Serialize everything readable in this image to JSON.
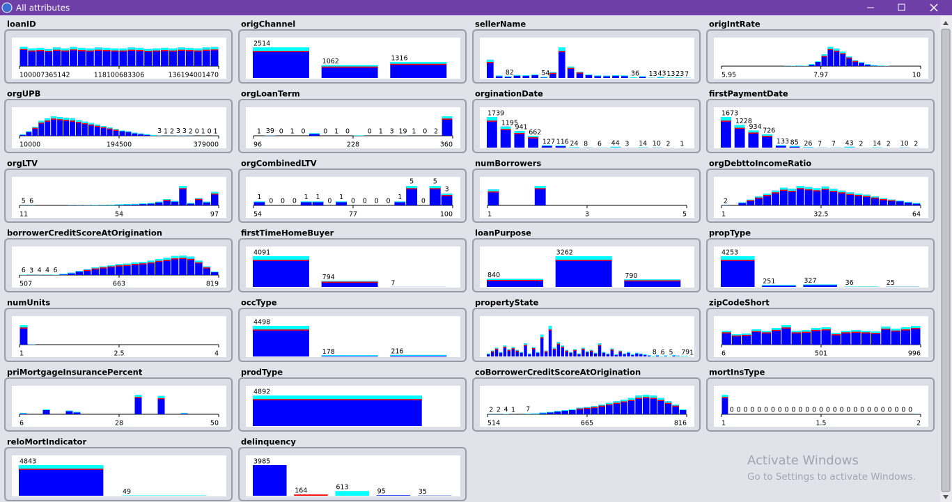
{
  "window": {
    "title": "All attributes"
  },
  "watermark": {
    "line1": "Activate Windows",
    "line2": "Go to Settings to activate Windows."
  },
  "panels": [
    {
      "name": "loanID",
      "kind": "numeric",
      "ticks": [
        100007365142,
        118100683306,
        136194001470
      ],
      "values": [
        220,
        200,
        205,
        195,
        210,
        200,
        215,
        205,
        200,
        210,
        205,
        200,
        200,
        210,
        205,
        195,
        200,
        205,
        200,
        210,
        205,
        200,
        210,
        215
      ]
    },
    {
      "name": "origChannel",
      "kind": "nominal",
      "values": [
        2514,
        1062,
        1316
      ]
    },
    {
      "name": "sellerName",
      "kind": "nominal",
      "values": [
        950,
        120,
        82,
        150,
        140,
        180,
        54,
        300,
        1600,
        600,
        320,
        180,
        130,
        120,
        140,
        130,
        36,
        90,
        13,
        43,
        13,
        23,
        7
      ],
      "value_labels": [
        null,
        null,
        "82",
        null,
        null,
        null,
        "54",
        null,
        null,
        null,
        null,
        null,
        null,
        null,
        null,
        null,
        "36",
        null,
        "13",
        "43",
        "13",
        "23",
        "7"
      ]
    },
    {
      "name": "origIntRate",
      "kind": "numeric",
      "ticks": [
        5.95,
        7.97,
        10
      ],
      "values": [
        0,
        0,
        0,
        0,
        0,
        0,
        0,
        0,
        0,
        0,
        2,
        3,
        5,
        4,
        20,
        50,
        120,
        200,
        180,
        150,
        100,
        60,
        40,
        20,
        10,
        5,
        3,
        0,
        0,
        0,
        0,
        0
      ]
    },
    {
      "name": "orgUPB",
      "kind": "numeric",
      "ticks": [
        10000,
        194500,
        379000
      ],
      "values": [
        20,
        60,
        120,
        200,
        230,
        260,
        250,
        240,
        230,
        210,
        190,
        170,
        150,
        130,
        110,
        90,
        70,
        60,
        40,
        30,
        20,
        10,
        3,
        1,
        2,
        3,
        3,
        2,
        0,
        1,
        0,
        1
      ],
      "value_labels": [
        null,
        null,
        null,
        null,
        null,
        null,
        null,
        null,
        null,
        null,
        null,
        null,
        null,
        null,
        null,
        null,
        null,
        null,
        null,
        null,
        null,
        null,
        "3",
        "1",
        "2",
        "3",
        "3",
        "2",
        "0",
        "1",
        "0",
        "1"
      ]
    },
    {
      "name": "orgLoanTerm",
      "kind": "numeric",
      "ticks": [
        96,
        228,
        360
      ],
      "values": [
        1,
        39,
        0,
        1,
        0,
        500,
        0,
        1,
        0,
        80,
        0,
        1,
        3,
        19,
        1,
        0,
        2,
        3900
      ],
      "value_labels": [
        "1",
        "39",
        "0",
        "1",
        "0",
        null,
        "0",
        "1",
        "0",
        null,
        "0",
        "1",
        "3",
        "19",
        "1",
        "0",
        "2",
        null
      ]
    },
    {
      "name": "orginationDate",
      "kind": "nominal",
      "values": [
        1739,
        1195,
        941,
        662,
        127,
        116,
        24,
        8,
        6,
        44,
        3,
        14,
        10,
        2,
        1
      ]
    },
    {
      "name": "firstPaymentDate",
      "kind": "nominal",
      "values": [
        1673,
        1228,
        934,
        726,
        133,
        85,
        26,
        7,
        7,
        43,
        2,
        14,
        2,
        10,
        2
      ]
    },
    {
      "name": "orgLTV",
      "kind": "numeric",
      "ticks": [
        11,
        54,
        97
      ],
      "values": [
        5,
        6,
        0,
        0,
        0,
        0,
        5,
        8,
        10,
        15,
        20,
        30,
        40,
        50,
        60,
        80,
        100,
        150,
        250,
        180,
        800,
        100,
        300,
        150,
        550
      ],
      "value_labels": [
        "5",
        "6",
        null,
        null,
        null,
        null,
        null,
        null,
        null,
        null,
        null,
        null,
        null,
        null,
        null,
        null,
        null,
        null,
        null,
        null,
        null,
        null,
        null,
        null,
        null
      ]
    },
    {
      "name": "orgCombinedLTV",
      "kind": "numeric",
      "ticks": [
        54,
        77,
        100
      ],
      "values": [
        1,
        0,
        0,
        0,
        1,
        1,
        0,
        1,
        0,
        0,
        0,
        0,
        1,
        5,
        0,
        5,
        3
      ],
      "value_labels": [
        "1",
        "0",
        "0",
        "0",
        "1",
        "1",
        "0",
        "1",
        "0",
        "0",
        "0",
        "0",
        "1",
        "5",
        "0",
        "5",
        "3"
      ]
    },
    {
      "name": "numBorrowers",
      "kind": "numeric",
      "ticks": [
        1,
        3,
        5
      ],
      "values": [
        2200,
        0,
        0,
        0,
        2700,
        0,
        0,
        0,
        0,
        0,
        0,
        0,
        0,
        0,
        0,
        0,
        0
      ]
    },
    {
      "name": "orgDebttoIncomeRatio",
      "kind": "numeric",
      "ticks": [
        1,
        32.5,
        64
      ],
      "values": [
        2,
        0,
        50,
        100,
        150,
        200,
        250,
        300,
        280,
        330,
        310,
        290,
        320,
        280,
        250,
        220,
        200,
        180,
        150,
        120,
        100,
        80,
        60,
        40
      ],
      "value_labels": [
        "2",
        null,
        null,
        null,
        null,
        null,
        null,
        null,
        null,
        null,
        null,
        null,
        null,
        null,
        null,
        null,
        null,
        null,
        null,
        null,
        null,
        null,
        null,
        null
      ]
    },
    {
      "name": "borrowerCreditScoreAtOrigination",
      "kind": "numeric",
      "ticks": [
        507,
        663,
        819
      ],
      "values": [
        6,
        3,
        4,
        4,
        6,
        20,
        40,
        70,
        100,
        130,
        150,
        170,
        190,
        200,
        220,
        230,
        250,
        280,
        300,
        330,
        340,
        320,
        250,
        150,
        60
      ],
      "value_labels": [
        "6",
        "3",
        "4",
        "4",
        "6",
        null,
        null,
        null,
        null,
        null,
        null,
        null,
        null,
        null,
        null,
        null,
        null,
        null,
        null,
        null,
        null,
        null,
        null,
        null,
        null
      ]
    },
    {
      "name": "firstTimeHomeBuyer",
      "kind": "nominal",
      "values": [
        4091,
        794,
        7
      ]
    },
    {
      "name": "loanPurpose",
      "kind": "nominal",
      "values": [
        840,
        3262,
        790
      ]
    },
    {
      "name": "propType",
      "kind": "nominal",
      "values": [
        4253,
        251,
        327,
        36,
        25
      ]
    },
    {
      "name": "numUnits",
      "kind": "numeric",
      "ticks": [
        1,
        2.5,
        4
      ],
      "values": [
        4800,
        60,
        0,
        0,
        0,
        0,
        0,
        0,
        0,
        0,
        0,
        0,
        0,
        0,
        0,
        0,
        0,
        0,
        0,
        0,
        0,
        0,
        0,
        0
      ]
    },
    {
      "name": "occType",
      "kind": "nominal",
      "values": [
        4498,
        178,
        216
      ]
    },
    {
      "name": "propertyState",
      "kind": "nominal",
      "values": [
        40,
        80,
        120,
        60,
        150,
        100,
        130,
        90,
        60,
        180,
        40,
        130,
        60,
        300,
        80,
        420,
        120,
        200,
        150,
        90,
        60,
        100,
        40,
        120,
        70,
        90,
        50,
        180,
        60,
        40,
        110,
        30,
        80,
        40,
        60,
        30,
        50,
        40,
        30,
        20,
        8,
        20,
        6,
        15,
        5,
        20,
        12,
        7,
        9,
        1
      ],
      "value_labels": [
        null,
        null,
        null,
        null,
        null,
        null,
        null,
        null,
        null,
        null,
        null,
        null,
        null,
        null,
        null,
        null,
        null,
        null,
        null,
        null,
        null,
        null,
        null,
        null,
        null,
        null,
        null,
        null,
        null,
        null,
        null,
        null,
        null,
        null,
        null,
        null,
        null,
        null,
        null,
        null,
        "8",
        null,
        "6",
        null,
        "5",
        null,
        null,
        "7",
        "9",
        "1"
      ]
    },
    {
      "name": "zipCodeShort",
      "kind": "numeric",
      "ticks": [
        6,
        501,
        996
      ],
      "values": [
        200,
        150,
        160,
        220,
        200,
        240,
        280,
        200,
        210,
        240,
        250,
        170,
        200,
        210,
        200,
        190,
        260,
        230,
        250,
        270
      ]
    },
    {
      "name": "priMortgageInsurancePercent",
      "kind": "numeric",
      "ticks": [
        6,
        28,
        50
      ],
      "values": [
        10,
        0,
        0,
        40,
        0,
        0,
        30,
        20,
        0,
        0,
        0,
        0,
        0,
        0,
        0,
        160,
        0,
        0,
        150,
        0,
        0,
        10,
        0,
        0,
        0,
        0
      ]
    },
    {
      "name": "prodType",
      "kind": "nominal",
      "values": [
        4892
      ]
    },
    {
      "name": "coBorrowerCreditScoreAtOrigination",
      "kind": "numeric",
      "ticks": [
        514,
        665,
        816
      ],
      "values": [
        2,
        2,
        4,
        1,
        0,
        7,
        10,
        20,
        30,
        40,
        50,
        60,
        80,
        90,
        100,
        120,
        140,
        160,
        180,
        200,
        230,
        240,
        230,
        200,
        160,
        120,
        60
      ],
      "value_labels": [
        "2",
        "2",
        "4",
        "1",
        null,
        "7",
        null,
        null,
        null,
        null,
        null,
        null,
        null,
        null,
        null,
        null,
        null,
        null,
        null,
        null,
        null,
        null,
        null,
        null,
        null,
        null,
        null
      ]
    },
    {
      "name": "mortInsType",
      "kind": "numeric",
      "ticks": [
        1,
        1.5,
        2
      ],
      "values": [
        900,
        0,
        0,
        0,
        0,
        0,
        0,
        0,
        0,
        0,
        0,
        0,
        0,
        0,
        0,
        0,
        0,
        0,
        0,
        0,
        0,
        0,
        0,
        0,
        0,
        0,
        0,
        0,
        5
      ],
      "value_labels": [
        null,
        "0",
        "0",
        "0",
        "0",
        "0",
        "0",
        "0",
        "0",
        "0",
        "0",
        "0",
        "0",
        "0",
        "0",
        "0",
        "0",
        "0",
        "0",
        "0",
        "0",
        "0",
        "0",
        "0",
        "0",
        "0",
        "0",
        "0",
        null
      ]
    },
    {
      "name": "reloMortIndicator",
      "kind": "nominal",
      "values": [
        4843,
        49
      ]
    },
    {
      "name": "delinquency",
      "kind": "nominal",
      "values": [
        3985,
        164,
        613,
        95,
        35
      ],
      "colors": [
        "#0000ff",
        "#ff0000",
        "#00ffff",
        "#3050ff",
        "#2040e0"
      ]
    }
  ]
}
